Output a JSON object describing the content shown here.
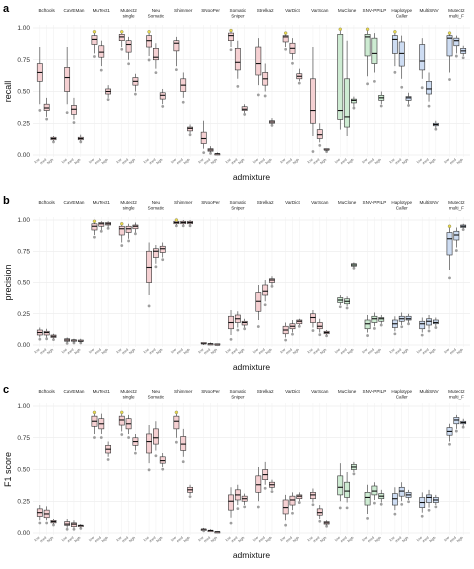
{
  "figure": {
    "panel_letters": [
      "a",
      "b",
      "c"
    ]
  },
  "colors": {
    "pink": "#f5d0d2",
    "green": "#cdebd2",
    "blue": "#cddcf2",
    "outline": "#333333",
    "outlier": "#777777",
    "highlight": "#e8d84a",
    "grid": "#e6e6e6"
  },
  "chart_data": [
    {
      "type": "box",
      "panel": "a",
      "ylabel": "recall",
      "xlabel": "admixture",
      "ylim": [
        0,
        1
      ],
      "yticks": [
        "0.00",
        "0.25",
        "0.50",
        "0.75",
        "1.00"
      ],
      "tools": [
        "Bcftools",
        "CaVEMan",
        "MuTect1",
        "Mutect2 single",
        "Neu Somatic",
        "Shimmer",
        "SNooPer",
        "Somatic Sniper",
        "Strelka2",
        "VarDict",
        "VarScan",
        "MuClone",
        "SNV-PPILP",
        "Haplotype Caller",
        "MultiSNV",
        "Mutect2 multi_F"
      ],
      "categories": [
        "low",
        "med",
        "high"
      ],
      "boxes": [
        [
          [
            0.4,
            0.58,
            0.65,
            0.72,
            0.85
          ],
          [
            0.3,
            0.35,
            0.37,
            0.4,
            0.45
          ],
          [
            0.11,
            0.12,
            0.13,
            0.14,
            0.15
          ]
        ],
        [
          [
            0.4,
            0.5,
            0.61,
            0.69,
            0.85
          ],
          [
            0.28,
            0.32,
            0.36,
            0.39,
            0.45
          ],
          [
            0.11,
            0.12,
            0.13,
            0.14,
            0.16
          ]
        ],
        [
          [
            0.8,
            0.87,
            0.91,
            0.94,
            0.97
          ],
          [
            0.7,
            0.77,
            0.81,
            0.86,
            0.9
          ],
          [
            0.45,
            0.48,
            0.5,
            0.52,
            0.55
          ]
        ],
        [
          [
            0.85,
            0.9,
            0.93,
            0.95,
            0.97
          ],
          [
            0.75,
            0.81,
            0.87,
            0.9,
            0.93
          ],
          [
            0.5,
            0.55,
            0.58,
            0.61,
            0.64
          ]
        ],
        [
          [
            0.78,
            0.85,
            0.9,
            0.94,
            0.97
          ],
          [
            0.68,
            0.75,
            0.77,
            0.84,
            0.88
          ],
          [
            0.4,
            0.44,
            0.47,
            0.49,
            0.52
          ]
        ],
        [
          [
            0.7,
            0.82,
            0.88,
            0.9,
            0.93
          ],
          [
            0.45,
            0.5,
            0.55,
            0.6,
            0.65
          ],
          [
            0.17,
            0.19,
            0.21,
            0.22,
            0.24
          ]
        ],
        [
          [
            0.05,
            0.09,
            0.13,
            0.18,
            0.27
          ],
          [
            0.02,
            0.03,
            0.04,
            0.05,
            0.07
          ],
          [
            0.0,
            0.0,
            0.01,
            0.01,
            0.02
          ]
        ],
        [
          [
            0.85,
            0.9,
            0.94,
            0.96,
            0.98
          ],
          [
            0.6,
            0.67,
            0.73,
            0.84,
            0.9
          ],
          [
            0.33,
            0.35,
            0.36,
            0.38,
            0.4
          ]
        ],
        [
          [
            0.55,
            0.63,
            0.72,
            0.85,
            0.92
          ],
          [
            0.5,
            0.55,
            0.6,
            0.65,
            0.72
          ],
          [
            0.24,
            0.25,
            0.26,
            0.27,
            0.29
          ]
        ],
        [
          [
            0.85,
            0.89,
            0.93,
            0.94,
            0.96
          ],
          [
            0.75,
            0.8,
            0.84,
            0.88,
            0.92
          ],
          [
            0.58,
            0.6,
            0.62,
            0.64,
            0.68
          ]
        ],
        [
          [
            0.15,
            0.25,
            0.35,
            0.6,
            0.85
          ],
          [
            0.1,
            0.13,
            0.16,
            0.2,
            0.25
          ],
          [
            0.03,
            0.04,
            0.04,
            0.05,
            0.05
          ]
        ],
        [
          [
            0.2,
            0.28,
            0.35,
            0.95,
            0.99
          ],
          [
            0.15,
            0.22,
            0.3,
            0.6,
            0.9
          ],
          [
            0.38,
            0.41,
            0.43,
            0.44,
            0.46
          ]
        ],
        [
          [
            0.62,
            0.78,
            0.93,
            0.95,
            0.99
          ],
          [
            0.65,
            0.72,
            0.8,
            0.92,
            0.96
          ],
          [
            0.4,
            0.43,
            0.45,
            0.47,
            0.5
          ]
        ],
        [
          [
            0.7,
            0.8,
            0.91,
            0.94,
            0.97
          ],
          [
            0.6,
            0.7,
            0.8,
            0.89,
            0.94
          ],
          [
            0.4,
            0.43,
            0.45,
            0.46,
            0.49
          ]
        ],
        [
          [
            0.6,
            0.67,
            0.74,
            0.87,
            0.92
          ],
          [
            0.42,
            0.48,
            0.52,
            0.58,
            0.65
          ],
          [
            0.21,
            0.23,
            0.24,
            0.25,
            0.27
          ]
        ],
        [
          [
            0.65,
            0.78,
            0.92,
            0.94,
            0.96
          ],
          [
            0.8,
            0.86,
            0.9,
            0.92,
            0.94
          ],
          [
            0.78,
            0.8,
            0.82,
            0.84,
            0.86
          ]
        ]
      ]
    },
    {
      "type": "box",
      "panel": "b",
      "ylabel": "precision",
      "xlabel": "admixture",
      "ylim": [
        0,
        1
      ],
      "yticks": [
        "0.00",
        "0.25",
        "0.50",
        "0.75",
        "1.00"
      ],
      "tools": [
        "Bcftools",
        "CaVEMan",
        "MuTect1",
        "Mutect2 single",
        "Neu Somatic",
        "Shimmer",
        "SNooPer",
        "Somatic Sniper",
        "Strelka2",
        "VarDict",
        "VarScan",
        "MuClone",
        "SNV-PPILP",
        "Haplotype Caller",
        "MultiSNV",
        "Mutect2 multi_F"
      ],
      "categories": [
        "low",
        "med",
        "high"
      ],
      "boxes": [
        [
          [
            0.06,
            0.08,
            0.1,
            0.12,
            0.14
          ],
          [
            0.06,
            0.08,
            0.1,
            0.11,
            0.13
          ],
          [
            0.05,
            0.06,
            0.07,
            0.08,
            0.09
          ]
        ],
        [
          [
            0.02,
            0.03,
            0.04,
            0.05,
            0.06
          ],
          [
            0.02,
            0.03,
            0.04,
            0.04,
            0.05
          ],
          [
            0.02,
            0.03,
            0.03,
            0.04,
            0.05
          ]
        ],
        [
          [
            0.88,
            0.92,
            0.95,
            0.97,
            0.99
          ],
          [
            0.92,
            0.95,
            0.97,
            0.98,
            0.99
          ],
          [
            0.94,
            0.96,
            0.97,
            0.98,
            0.99
          ]
        ],
        [
          [
            0.82,
            0.88,
            0.93,
            0.95,
            0.97
          ],
          [
            0.85,
            0.9,
            0.93,
            0.95,
            0.97
          ],
          [
            0.9,
            0.93,
            0.95,
            0.96,
            0.98
          ]
        ],
        [
          [
            0.4,
            0.5,
            0.62,
            0.75,
            0.82
          ],
          [
            0.65,
            0.7,
            0.75,
            0.77,
            0.8
          ],
          [
            0.7,
            0.74,
            0.77,
            0.79,
            0.82
          ]
        ],
        [
          [
            0.96,
            0.97,
            0.98,
            0.99,
            1.0
          ],
          [
            0.96,
            0.97,
            0.98,
            0.99,
            1.0
          ],
          [
            0.96,
            0.97,
            0.98,
            0.99,
            1.0
          ]
        ],
        [
          [
            0.0,
            0.01,
            0.01,
            0.02,
            0.02
          ],
          [
            0.0,
            0.0,
            0.01,
            0.01,
            0.02
          ],
          [
            0.0,
            0.0,
            0.0,
            0.01,
            0.01
          ]
        ],
        [
          [
            0.08,
            0.13,
            0.18,
            0.23,
            0.28
          ],
          [
            0.14,
            0.18,
            0.21,
            0.24,
            0.27
          ],
          [
            0.14,
            0.16,
            0.18,
            0.19,
            0.21
          ]
        ],
        [
          [
            0.2,
            0.27,
            0.35,
            0.42,
            0.48
          ],
          [
            0.35,
            0.4,
            0.43,
            0.48,
            0.52
          ],
          [
            0.48,
            0.5,
            0.52,
            0.53,
            0.55
          ]
        ],
        [
          [
            0.06,
            0.09,
            0.12,
            0.15,
            0.18
          ],
          [
            0.1,
            0.13,
            0.15,
            0.17,
            0.2
          ],
          [
            0.16,
            0.17,
            0.19,
            0.2,
            0.21
          ]
        ],
        [
          [
            0.14,
            0.18,
            0.22,
            0.25,
            0.28
          ],
          [
            0.1,
            0.13,
            0.15,
            0.18,
            0.21
          ],
          [
            0.08,
            0.09,
            0.1,
            0.11,
            0.12
          ]
        ],
        [
          [
            0.32,
            0.34,
            0.36,
            0.38,
            0.4
          ],
          [
            0.31,
            0.33,
            0.35,
            0.37,
            0.39
          ],
          [
            0.62,
            0.63,
            0.64,
            0.65,
            0.66
          ]
        ],
        [
          [
            0.1,
            0.13,
            0.17,
            0.2,
            0.24
          ],
          [
            0.15,
            0.18,
            0.21,
            0.23,
            0.26
          ],
          [
            0.17,
            0.19,
            0.21,
            0.22,
            0.24
          ]
        ],
        [
          [
            0.11,
            0.14,
            0.17,
            0.2,
            0.23
          ],
          [
            0.16,
            0.19,
            0.21,
            0.23,
            0.26
          ],
          [
            0.18,
            0.2,
            0.21,
            0.23,
            0.25
          ]
        ],
        [
          [
            0.1,
            0.13,
            0.17,
            0.19,
            0.22
          ],
          [
            0.13,
            0.16,
            0.19,
            0.21,
            0.24
          ],
          [
            0.15,
            0.17,
            0.18,
            0.2,
            0.22
          ]
        ],
        [
          [
            0.6,
            0.72,
            0.85,
            0.9,
            0.95
          ],
          [
            0.78,
            0.84,
            0.88,
            0.91,
            0.94
          ],
          [
            0.93,
            0.94,
            0.95,
            0.96,
            0.97
          ]
        ]
      ]
    },
    {
      "type": "box",
      "panel": "c",
      "ylabel": "F1 score",
      "xlabel": "admixture",
      "ylim": [
        0,
        1
      ],
      "yticks": [
        "0.00",
        "0.25",
        "0.50",
        "0.75",
        "1.00"
      ],
      "tools": [
        "Bcftools",
        "CaVEMan",
        "MuTect1",
        "Mutect2 single",
        "Neu Somatic",
        "Shimmer",
        "SNooPer",
        "Somatic Sniper",
        "Strelka2",
        "VarDict",
        "VarScan",
        "MuClone",
        "SNV-PPILP",
        "Haplotype Caller",
        "MultiSNV",
        "Mutect2 multi_F"
      ],
      "categories": [
        "low",
        "med",
        "high"
      ],
      "boxes": [
        [
          [
            0.1,
            0.13,
            0.16,
            0.19,
            0.22
          ],
          [
            0.1,
            0.12,
            0.15,
            0.18,
            0.21
          ],
          [
            0.07,
            0.08,
            0.09,
            0.1,
            0.11
          ]
        ],
        [
          [
            0.04,
            0.06,
            0.07,
            0.09,
            0.11
          ],
          [
            0.04,
            0.05,
            0.07,
            0.08,
            0.1
          ],
          [
            0.04,
            0.05,
            0.06,
            0.06,
            0.07
          ]
        ],
        [
          [
            0.78,
            0.84,
            0.88,
            0.92,
            0.95
          ],
          [
            0.78,
            0.82,
            0.86,
            0.9,
            0.94
          ],
          [
            0.6,
            0.63,
            0.66,
            0.69,
            0.72
          ]
        ],
        [
          [
            0.8,
            0.85,
            0.89,
            0.92,
            0.95
          ],
          [
            0.78,
            0.82,
            0.86,
            0.9,
            0.93
          ],
          [
            0.65,
            0.69,
            0.72,
            0.75,
            0.78
          ]
        ],
        [
          [
            0.55,
            0.63,
            0.72,
            0.78,
            0.85
          ],
          [
            0.65,
            0.7,
            0.75,
            0.82,
            0.88
          ],
          [
            0.52,
            0.55,
            0.57,
            0.6,
            0.63
          ]
        ],
        [
          [
            0.75,
            0.82,
            0.88,
            0.92,
            0.95
          ],
          [
            0.6,
            0.65,
            0.7,
            0.76,
            0.82
          ],
          [
            0.3,
            0.32,
            0.34,
            0.36,
            0.38
          ]
        ],
        [
          [
            0.02,
            0.02,
            0.03,
            0.03,
            0.04
          ],
          [
            0.01,
            0.01,
            0.02,
            0.02,
            0.03
          ],
          [
            0.0,
            0.0,
            0.01,
            0.01,
            0.01
          ]
        ],
        [
          [
            0.12,
            0.18,
            0.25,
            0.3,
            0.36
          ],
          [
            0.22,
            0.26,
            0.3,
            0.34,
            0.38
          ],
          [
            0.22,
            0.25,
            0.27,
            0.29,
            0.31
          ]
        ],
        [
          [
            0.25,
            0.32,
            0.38,
            0.45,
            0.52
          ],
          [
            0.38,
            0.42,
            0.46,
            0.5,
            0.56
          ],
          [
            0.34,
            0.36,
            0.38,
            0.4,
            0.42
          ]
        ],
        [
          [
            0.1,
            0.15,
            0.2,
            0.26,
            0.3
          ],
          [
            0.18,
            0.22,
            0.26,
            0.29,
            0.32
          ],
          [
            0.25,
            0.27,
            0.29,
            0.3,
            0.32
          ]
        ],
        [
          [
            0.24,
            0.27,
            0.3,
            0.32,
            0.35
          ],
          [
            0.11,
            0.14,
            0.16,
            0.19,
            0.22
          ],
          [
            0.06,
            0.07,
            0.08,
            0.09,
            0.1
          ]
        ],
        [
          [
            0.25,
            0.3,
            0.36,
            0.45,
            0.55
          ],
          [
            0.24,
            0.28,
            0.33,
            0.4,
            0.48
          ],
          [
            0.48,
            0.5,
            0.52,
            0.54,
            0.56
          ]
        ],
        [
          [
            0.15,
            0.22,
            0.28,
            0.32,
            0.38
          ],
          [
            0.26,
            0.3,
            0.33,
            0.37,
            0.4
          ],
          [
            0.24,
            0.27,
            0.29,
            0.31,
            0.34
          ]
        ],
        [
          [
            0.18,
            0.22,
            0.27,
            0.31,
            0.36
          ],
          [
            0.25,
            0.29,
            0.33,
            0.36,
            0.4
          ],
          [
            0.26,
            0.28,
            0.3,
            0.32,
            0.34
          ]
        ],
        [
          [
            0.16,
            0.2,
            0.24,
            0.28,
            0.32
          ],
          [
            0.2,
            0.24,
            0.28,
            0.3,
            0.34
          ],
          [
            0.22,
            0.24,
            0.26,
            0.28,
            0.3
          ]
        ],
        [
          [
            0.72,
            0.77,
            0.8,
            0.83,
            0.86
          ],
          [
            0.82,
            0.86,
            0.89,
            0.91,
            0.93
          ],
          [
            0.84,
            0.86,
            0.87,
            0.88,
            0.9
          ]
        ]
      ]
    }
  ]
}
